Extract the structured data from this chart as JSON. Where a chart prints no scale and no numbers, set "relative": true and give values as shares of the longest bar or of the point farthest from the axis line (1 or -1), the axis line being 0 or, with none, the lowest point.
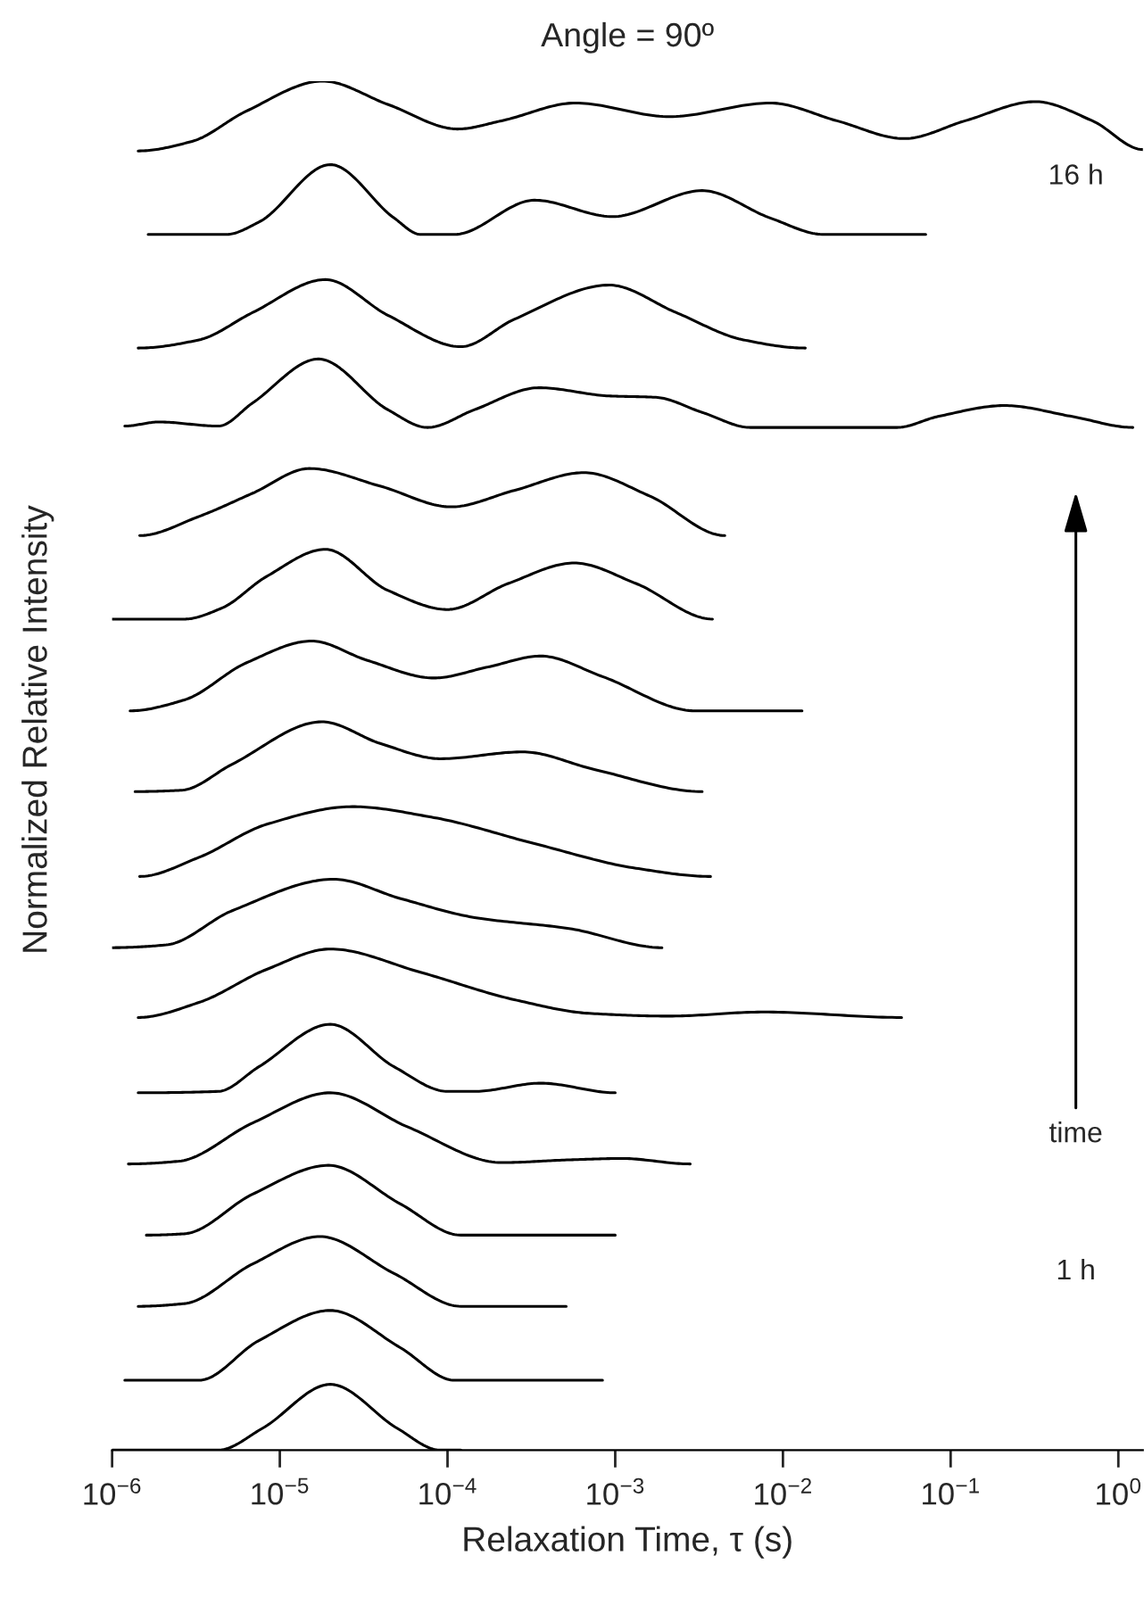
{
  "chart_data": {
    "type": "line",
    "title": "Angle = 90º",
    "xlabel": "Relaxation Time, τ (s)",
    "ylabel": "Normalized Relative Intensity",
    "relative": true,
    "log": "x",
    "grid": false,
    "xlim": [
      1e-06,
      1.4
    ],
    "xticks": [
      {
        "value": 1e-06,
        "label": "10$^{−6}$"
      },
      {
        "value": 1e-05,
        "label": "10$^{−5}$"
      },
      {
        "value": 0.0001,
        "label": "10$^{−4}$"
      },
      {
        "value": 0.001,
        "label": "10$^{−3}$"
      },
      {
        "value": 0.01,
        "label": "10$^{−2}$"
      },
      {
        "value": 0.1,
        "label": "10$^{−1}$"
      },
      {
        "value": 1,
        "label": "10$^{0}$"
      }
    ],
    "annotations": [
      "16 h",
      "1 h",
      "time"
    ],
    "series": [
      {
        "color": "#000000",
        "x": [
          1.43e-06,
          3e-06,
          6.3e-06,
          1.8e-05,
          4.4e-05,
          0.000115,
          0.00021,
          0.00058,
          0.0021,
          0.0084,
          0.021,
          0.053,
          0.122,
          0.32,
          0.7,
          1.4
        ],
        "values": [
          0.949,
          0.956,
          0.978,
          1.0,
          0.983,
          0.965,
          0.971,
          0.984,
          0.974,
          0.984,
          0.971,
          0.958,
          0.971,
          0.985,
          0.971,
          0.95
        ]
      },
      {
        "color": "#000000",
        "x": [
          1.64e-06,
          4.8e-06,
          7.5e-06,
          2e-05,
          4.8e-05,
          6.9e-05,
          0.00011,
          0.00033,
          0.00096,
          0.0033,
          0.0084,
          0.0175,
          0.071
        ],
        "values": [
          0.888,
          0.888,
          0.897,
          0.939,
          0.9,
          0.888,
          0.888,
          0.913,
          0.901,
          0.92,
          0.9,
          0.888,
          0.888
        ]
      },
      {
        "color": "#000000",
        "x": [
          1.43e-06,
          3.3e-06,
          6.9e-06,
          1.87e-05,
          4.4e-05,
          0.00012,
          0.00025,
          0.00092,
          0.0023,
          0.0058,
          0.0136
        ],
        "values": [
          0.805,
          0.811,
          0.831,
          0.855,
          0.829,
          0.806,
          0.826,
          0.851,
          0.831,
          0.811,
          0.805
        ]
      },
      {
        "color": "#000000",
        "x": [
          1.19e-06,
          1.9e-06,
          4.3e-06,
          6.9e-06,
          1.7e-05,
          4.4e-05,
          7.6e-05,
          0.000145,
          0.00035,
          0.00092,
          0.00175,
          0.0033,
          0.0064,
          0.048,
          0.084,
          0.21,
          0.53,
          1.22
        ],
        "values": [
          0.748,
          0.751,
          0.748,
          0.765,
          0.797,
          0.76,
          0.747,
          0.76,
          0.776,
          0.77,
          0.769,
          0.758,
          0.747,
          0.747,
          0.755,
          0.763,
          0.755,
          0.747
        ]
      },
      {
        "color": "#000000",
        "x": [
          1.46e-06,
          3.3e-06,
          6.9e-06,
          1.5e-05,
          4e-05,
          0.000105,
          0.00025,
          0.00065,
          0.0016,
          0.0045
        ],
        "values": [
          0.668,
          0.682,
          0.699,
          0.717,
          0.704,
          0.689,
          0.701,
          0.714,
          0.697,
          0.668
        ]
      },
      {
        "color": "#000000",
        "x": [
          1e-06,
          2.7e-06,
          4.5e-06,
          8.3e-06,
          1.87e-05,
          4.4e-05,
          0.0001,
          0.00023,
          0.00057,
          0.00133,
          0.0038
        ],
        "values": [
          0.607,
          0.607,
          0.615,
          0.638,
          0.658,
          0.628,
          0.614,
          0.633,
          0.648,
          0.633,
          0.607
        ]
      },
      {
        "color": "#000000",
        "x": [
          1.28e-06,
          2.7e-06,
          6.3e-06,
          1.55e-05,
          3.3e-05,
          8.3e-05,
          0.000174,
          0.00036,
          0.00084,
          0.003,
          0.013
        ],
        "values": [
          0.54,
          0.548,
          0.575,
          0.591,
          0.577,
          0.564,
          0.572,
          0.58,
          0.565,
          0.54,
          0.54
        ]
      },
      {
        "color": "#000000",
        "x": [
          1.37e-06,
          2.6e-06,
          5.2e-06,
          1.78e-05,
          4e-05,
          9.1e-05,
          0.00028,
          0.00076,
          0.0033
        ],
        "values": [
          0.481,
          0.482,
          0.501,
          0.532,
          0.516,
          0.505,
          0.51,
          0.497,
          0.481
        ]
      },
      {
        "color": "#000000",
        "x": [
          1.46e-06,
          3.3e-06,
          8.3e-06,
          2.7e-05,
          8.3e-05,
          0.00033,
          0.00133,
          0.0037
        ],
        "values": [
          0.419,
          0.433,
          0.457,
          0.47,
          0.462,
          0.443,
          0.425,
          0.419
        ]
      },
      {
        "color": "#000000",
        "x": [
          1e-06,
          2.1e-06,
          5.2e-06,
          2.1e-05,
          5.2e-05,
          0.000145,
          0.00053,
          0.0019
        ],
        "values": [
          0.367,
          0.369,
          0.394,
          0.417,
          0.403,
          0.389,
          0.381,
          0.367
        ]
      },
      {
        "color": "#000000",
        "x": [
          1.43e-06,
          3.3e-06,
          8.3e-06,
          2e-05,
          6.9e-05,
          0.00025,
          0.0007,
          0.0021,
          0.0077,
          0.051
        ],
        "values": [
          0.316,
          0.327,
          0.351,
          0.366,
          0.349,
          0.329,
          0.319,
          0.317,
          0.32,
          0.316
        ]
      },
      {
        "color": "#000000",
        "x": [
          1.43e-06,
          4.3e-06,
          7.5e-06,
          2e-05,
          4.8e-05,
          0.0001,
          0.000145,
          0.00036,
          0.001
        ],
        "values": [
          0.261,
          0.262,
          0.28,
          0.311,
          0.28,
          0.262,
          0.262,
          0.268,
          0.261
        ]
      },
      {
        "color": "#000000",
        "x": [
          1.25e-06,
          2.5e-06,
          6.9e-06,
          2e-05,
          5.8e-05,
          0.00021,
          0.00053,
          0.0011,
          0.0028
        ],
        "values": [
          0.209,
          0.211,
          0.239,
          0.261,
          0.236,
          0.21,
          0.212,
          0.213,
          0.209
        ]
      },
      {
        "color": "#000000",
        "x": [
          1.6e-06,
          2.7e-06,
          6.9e-06,
          1.95e-05,
          5.2e-05,
          0.00012,
          0.001
        ],
        "values": [
          0.157,
          0.158,
          0.187,
          0.208,
          0.18,
          0.157,
          0.157
        ]
      },
      {
        "color": "#000000",
        "x": [
          1.43e-06,
          2.7e-06,
          6.9e-06,
          1.73e-05,
          4.8e-05,
          0.00012,
          0.00051
        ],
        "values": [
          0.105,
          0.107,
          0.136,
          0.156,
          0.129,
          0.105,
          0.105
        ]
      },
      {
        "color": "#000000",
        "x": [
          1.19e-06,
          3.3e-06,
          7.5e-06,
          2e-05,
          5.2e-05,
          0.00011,
          0.00084
        ],
        "values": [
          0.051,
          0.051,
          0.08,
          0.102,
          0.075,
          0.051,
          0.051
        ]
      },
      {
        "color": "#000000",
        "x": [
          1e-06,
          4.3e-06,
          7.9e-06,
          2e-05,
          5e-05,
          9e-05,
          0.00012
        ],
        "values": [
          0.0,
          0.0,
          0.016,
          0.048,
          0.016,
          0.0,
          0.0
        ]
      }
    ]
  }
}
